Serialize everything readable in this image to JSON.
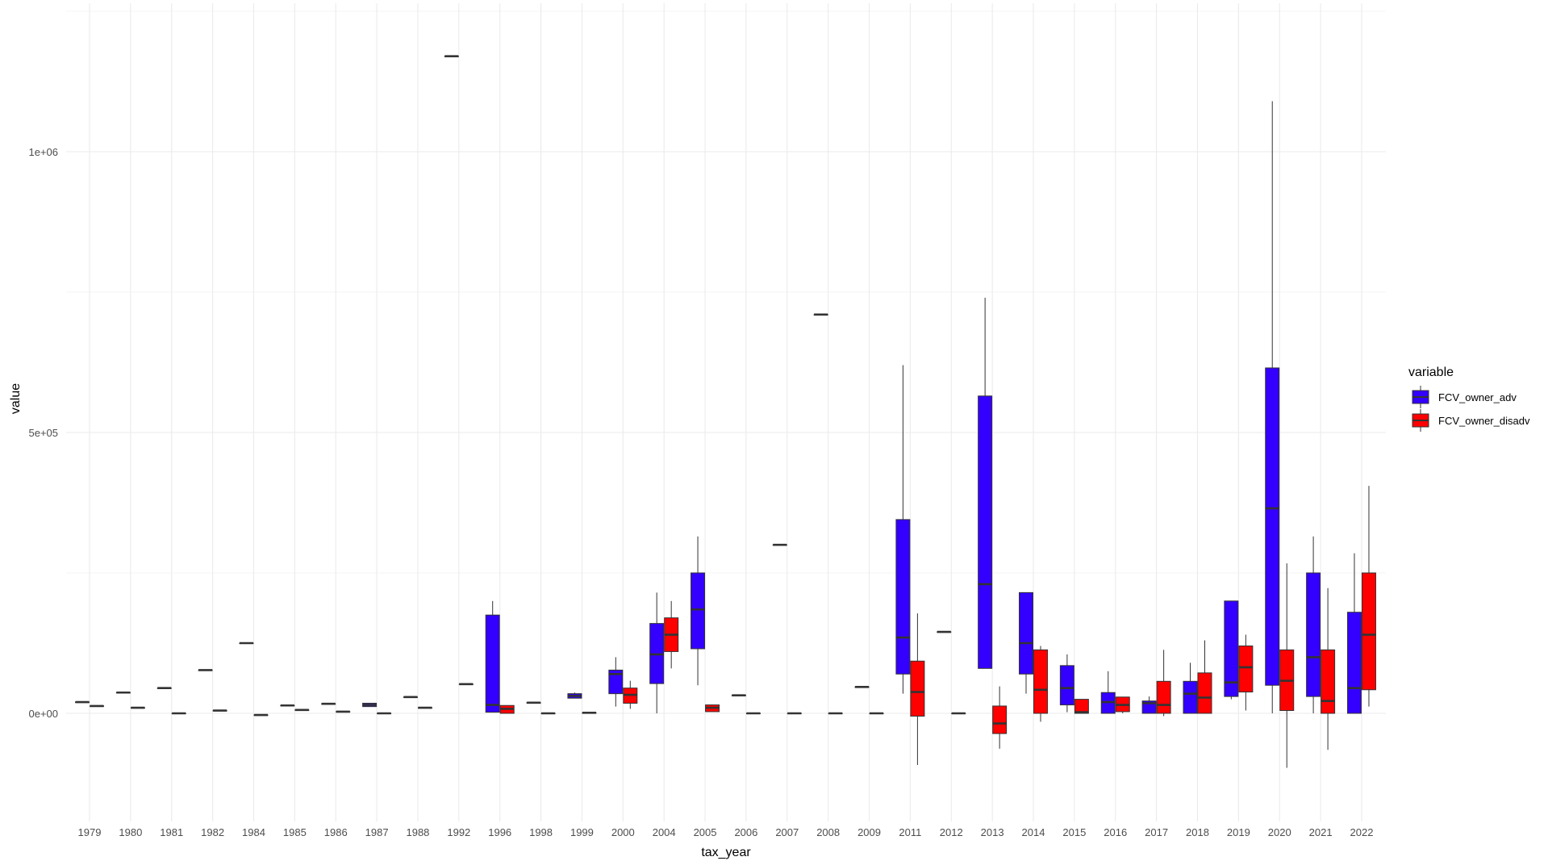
{
  "chart_data": {
    "type": "boxplot",
    "xlabel": "tax_year",
    "ylabel": "value",
    "ylim": [
      -180000,
      1250000
    ],
    "y_ticks": [
      0,
      500000,
      1000000
    ],
    "y_tick_labels": [
      "0e+00",
      "5e+05",
      "1e+06"
    ],
    "grid": true,
    "legend": {
      "title": "variable",
      "position": "right"
    },
    "categories": [
      "1979",
      "1980",
      "1981",
      "1982",
      "1984",
      "1985",
      "1986",
      "1987",
      "1988",
      "1992",
      "1996",
      "1998",
      "1999",
      "2000",
      "2004",
      "2005",
      "2006",
      "2007",
      "2008",
      "2009",
      "2011",
      "2012",
      "2013",
      "2014",
      "2015",
      "2016",
      "2017",
      "2018",
      "2019",
      "2020",
      "2021",
      "2022"
    ],
    "series": [
      {
        "name": "FCV_owner_adv",
        "color": "#3300ff",
        "boxes": [
          {
            "x": "1979",
            "min": 20000,
            "q1": 20000,
            "median": 20000,
            "q3": 20000,
            "max": 20000
          },
          {
            "x": "1980",
            "min": 37000,
            "q1": 37000,
            "median": 37000,
            "q3": 37000,
            "max": 37000
          },
          {
            "x": "1981",
            "min": 45000,
            "q1": 45000,
            "median": 45000,
            "q3": 45000,
            "max": 45000
          },
          {
            "x": "1982",
            "min": 77000,
            "q1": 77000,
            "median": 77000,
            "q3": 77000,
            "max": 77000
          },
          {
            "x": "1984",
            "min": 125000,
            "q1": 125000,
            "median": 125000,
            "q3": 125000,
            "max": 125000
          },
          {
            "x": "1985",
            "min": 14000,
            "q1": 14000,
            "median": 14000,
            "q3": 14000,
            "max": 14000
          },
          {
            "x": "1986",
            "min": 17000,
            "q1": 17000,
            "median": 17000,
            "q3": 17000,
            "max": 17000
          },
          {
            "x": "1987",
            "min": 12000,
            "q1": 12000,
            "median": 15000,
            "q3": 18000,
            "max": 18000
          },
          {
            "x": "1988",
            "min": 29000,
            "q1": 29000,
            "median": 29000,
            "q3": 29000,
            "max": 29000
          },
          {
            "x": "1992",
            "min": 1170000,
            "q1": 1170000,
            "median": 1170000,
            "q3": 1170000,
            "max": 1170000
          },
          {
            "x": "1996",
            "min": 2000,
            "q1": 2000,
            "median": 15000,
            "q3": 175000,
            "max": 200000
          },
          {
            "x": "1998",
            "min": 19000,
            "q1": 19000,
            "median": 19000,
            "q3": 19000,
            "max": 19000
          },
          {
            "x": "1999",
            "min": 27000,
            "q1": 27000,
            "median": 31000,
            "q3": 35000,
            "max": 37000
          },
          {
            "x": "2000",
            "min": 12000,
            "q1": 35000,
            "median": 70000,
            "q3": 77000,
            "max": 100000
          },
          {
            "x": "2004",
            "min": 0,
            "q1": 53000,
            "median": 105000,
            "q3": 160000,
            "max": 215000
          },
          {
            "x": "2005",
            "min": 50000,
            "q1": 115000,
            "median": 185000,
            "q3": 250000,
            "max": 315000
          },
          {
            "x": "2006",
            "min": 32000,
            "q1": 32000,
            "median": 32000,
            "q3": 32000,
            "max": 32000
          },
          {
            "x": "2007",
            "min": 300000,
            "q1": 300000,
            "median": 300000,
            "q3": 300000,
            "max": 300000
          },
          {
            "x": "2008",
            "min": 710000,
            "q1": 710000,
            "median": 710000,
            "q3": 710000,
            "max": 710000
          },
          {
            "x": "2009",
            "min": 47000,
            "q1": 47000,
            "median": 47000,
            "q3": 47000,
            "max": 47000
          },
          {
            "x": "2011",
            "min": 35000,
            "q1": 70000,
            "median": 135000,
            "q3": 345000,
            "max": 620000
          },
          {
            "x": "2012",
            "min": 145000,
            "q1": 145000,
            "median": 145000,
            "q3": 145000,
            "max": 145000
          },
          {
            "x": "2013",
            "min": 80000,
            "q1": 80000,
            "median": 230000,
            "q3": 565000,
            "max": 740000
          },
          {
            "x": "2014",
            "min": 35000,
            "q1": 70000,
            "median": 125000,
            "q3": 215000,
            "max": 215000
          },
          {
            "x": "2015",
            "min": 2000,
            "q1": 15000,
            "median": 45000,
            "q3": 85000,
            "max": 105000
          },
          {
            "x": "2016",
            "min": 0,
            "q1": 0,
            "median": 20000,
            "q3": 37000,
            "max": 75000
          },
          {
            "x": "2017",
            "min": 0,
            "q1": 0,
            "median": 18000,
            "q3": 22000,
            "max": 30000
          },
          {
            "x": "2018",
            "min": 0,
            "q1": 0,
            "median": 35000,
            "q3": 57000,
            "max": 90000
          },
          {
            "x": "2019",
            "min": 25000,
            "q1": 30000,
            "median": 55000,
            "q3": 200000,
            "max": 200000
          },
          {
            "x": "2020",
            "min": 0,
            "q1": 50000,
            "median": 365000,
            "q3": 615000,
            "max": 1090000
          },
          {
            "x": "2021",
            "min": 0,
            "q1": 30000,
            "median": 100000,
            "q3": 250000,
            "max": 315000
          },
          {
            "x": "2022",
            "min": 0,
            "q1": 0,
            "median": 45000,
            "q3": 180000,
            "max": 285000
          }
        ]
      },
      {
        "name": "FCV_owner_disadv",
        "color": "#ff0000",
        "boxes": [
          {
            "x": "1979",
            "min": 13000,
            "q1": 13000,
            "median": 13000,
            "q3": 13000,
            "max": 13000
          },
          {
            "x": "1980",
            "min": 10000,
            "q1": 10000,
            "median": 10000,
            "q3": 10000,
            "max": 10000
          },
          {
            "x": "1981",
            "min": 0,
            "q1": 0,
            "median": 0,
            "q3": 0,
            "max": 0
          },
          {
            "x": "1982",
            "min": 5000,
            "q1": 5000,
            "median": 5000,
            "q3": 5000,
            "max": 5000
          },
          {
            "x": "1984",
            "min": -3000,
            "q1": -3000,
            "median": -3000,
            "q3": -3000,
            "max": -3000
          },
          {
            "x": "1985",
            "min": 6000,
            "q1": 6000,
            "median": 6000,
            "q3": 6000,
            "max": 6000
          },
          {
            "x": "1986",
            "min": 3000,
            "q1": 3000,
            "median": 3000,
            "q3": 3000,
            "max": 3000
          },
          {
            "x": "1987",
            "min": 0,
            "q1": 0,
            "median": 0,
            "q3": 0,
            "max": 0
          },
          {
            "x": "1988",
            "min": 10000,
            "q1": 10000,
            "median": 10000,
            "q3": 10000,
            "max": 10000
          },
          {
            "x": "1992",
            "min": 52000,
            "q1": 52000,
            "median": 52000,
            "q3": 52000,
            "max": 52000
          },
          {
            "x": "1996",
            "min": 0,
            "q1": 0,
            "median": 8000,
            "q3": 14000,
            "max": 14000
          },
          {
            "x": "1998",
            "min": 0,
            "q1": 0,
            "median": 0,
            "q3": 0,
            "max": 0
          },
          {
            "x": "1999",
            "min": 1000,
            "q1": 1000,
            "median": 1000,
            "q3": 1000,
            "max": 1000
          },
          {
            "x": "2000",
            "min": 8000,
            "q1": 18000,
            "median": 33000,
            "q3": 45000,
            "max": 58000
          },
          {
            "x": "2004",
            "min": 80000,
            "q1": 110000,
            "median": 140000,
            "q3": 170000,
            "max": 200000
          },
          {
            "x": "2005",
            "min": 3000,
            "q1": 3000,
            "median": 10000,
            "q3": 15000,
            "max": 15000
          },
          {
            "x": "2006",
            "min": 0,
            "q1": 0,
            "median": 0,
            "q3": 0,
            "max": 0
          },
          {
            "x": "2007",
            "min": 0,
            "q1": 0,
            "median": 0,
            "q3": 0,
            "max": 0
          },
          {
            "x": "2008",
            "min": 0,
            "q1": 0,
            "median": 0,
            "q3": 0,
            "max": 0
          },
          {
            "x": "2009",
            "min": 0,
            "q1": 0,
            "median": 0,
            "q3": 0,
            "max": 0
          },
          {
            "x": "2011",
            "min": -92000,
            "q1": -5000,
            "median": 38000,
            "q3": 93000,
            "max": 178000
          },
          {
            "x": "2012",
            "min": 0,
            "q1": 0,
            "median": 0,
            "q3": 0,
            "max": 0
          },
          {
            "x": "2013",
            "min": -63000,
            "q1": -36000,
            "median": -18000,
            "q3": 13000,
            "max": 48000
          },
          {
            "x": "2014",
            "min": -15000,
            "q1": 0,
            "median": 42000,
            "q3": 113000,
            "max": 120000
          },
          {
            "x": "2015",
            "min": 0,
            "q1": 0,
            "median": 2000,
            "q3": 25000,
            "max": 25000
          },
          {
            "x": "2016",
            "min": 0,
            "q1": 3000,
            "median": 15000,
            "q3": 29000,
            "max": 29000
          },
          {
            "x": "2017",
            "min": -5000,
            "q1": 0,
            "median": 15000,
            "q3": 57000,
            "max": 113000
          },
          {
            "x": "2018",
            "min": 0,
            "q1": 0,
            "median": 28000,
            "q3": 72000,
            "max": 130000
          },
          {
            "x": "2019",
            "min": 5000,
            "q1": 38000,
            "median": 82000,
            "q3": 120000,
            "max": 140000
          },
          {
            "x": "2020",
            "min": -97000,
            "q1": 5000,
            "median": 58000,
            "q3": 113000,
            "max": 267000
          },
          {
            "x": "2021",
            "min": -65000,
            "q1": 0,
            "median": 22000,
            "q3": 113000,
            "max": 223000
          },
          {
            "x": "2022",
            "min": 12000,
            "q1": 42000,
            "median": 140000,
            "q3": 250000,
            "max": 405000
          }
        ]
      }
    ]
  }
}
